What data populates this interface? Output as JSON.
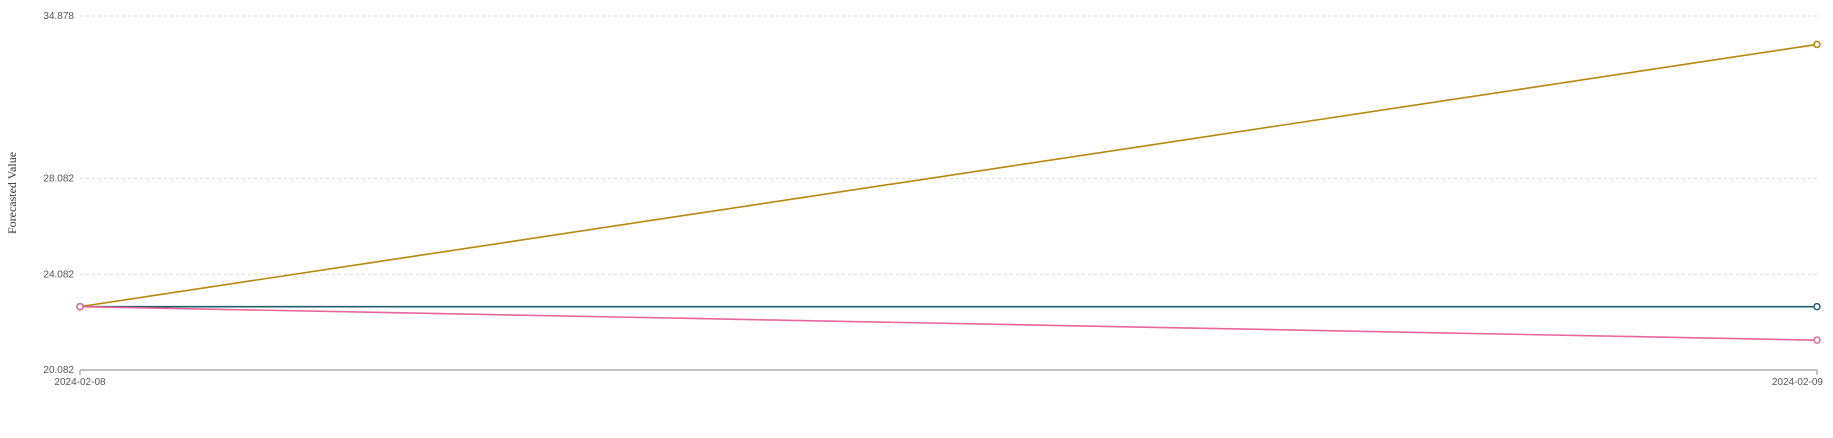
{
  "chart_data": {
    "type": "line",
    "title": "",
    "xlabel": "",
    "ylabel": "Forecasted Value",
    "x": [
      "2024-02-08",
      "2024-02-09"
    ],
    "ylim": [
      20.082,
      34.878
    ],
    "y_ticks": [
      "20.082",
      "24.082",
      "28.082",
      "34.878"
    ],
    "grid": "horizontal dashed",
    "legend": "none",
    "series": [
      {
        "values": [
          22.73,
          33.69
        ],
        "color": "#b8860b"
      },
      {
        "values": [
          22.73,
          22.73
        ],
        "color": "#1f5f6b"
      },
      {
        "values": [
          22.73,
          21.33
        ],
        "color": "#e8669a"
      }
    ]
  }
}
